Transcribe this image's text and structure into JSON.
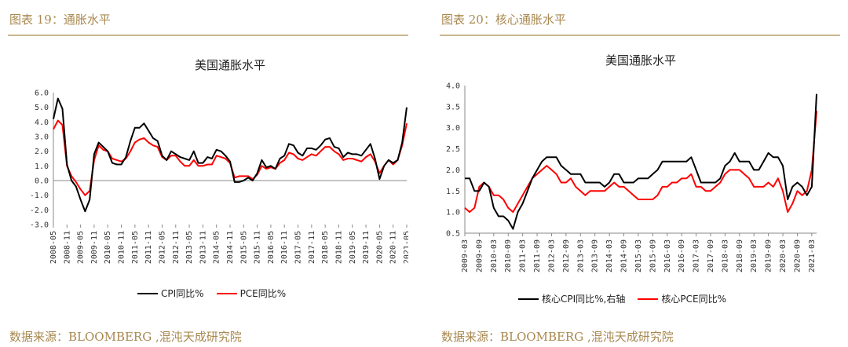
{
  "figures": [
    {
      "caption": "图表 19：通胀水平",
      "source": "数据来源：BLOOMBERG ,混沌天成研究院",
      "legend": [
        "CPI同比%",
        "PCE同比%"
      ]
    },
    {
      "caption": "图表 20：核心通胀水平",
      "source": "数据来源：BLOOMBERG ,混沌天成研究院",
      "legend": [
        "核心CPI同比%,右轴",
        "核心PCE同比%"
      ]
    }
  ],
  "chart_data": [
    {
      "type": "line",
      "title": "美国通胀水平",
      "xlabel": "",
      "ylabel": "",
      "ylim": [
        -3.0,
        6.0
      ],
      "yticks": [
        "6.0",
        "5.0",
        "4.0",
        "3.0",
        "2.0",
        "1.0",
        "0.0",
        "-1.0",
        "-2.0",
        "-3.0"
      ],
      "x_start": "2008-05",
      "x_end": "2021-05",
      "xticks": [
        "2008-05",
        "2008-11",
        "2009-05",
        "2009-11",
        "2010-05",
        "2010-11",
        "2011-05",
        "2011-11",
        "2012-05",
        "2012-11",
        "2013-05",
        "2013-11",
        "2014-05",
        "2014-11",
        "2015-05",
        "2015-11",
        "2016-05",
        "2016-11",
        "2017-05",
        "2017-11",
        "2018-05",
        "2018-11",
        "2019-05",
        "2019-11",
        "2020-05",
        "2020-11",
        "2021-05"
      ],
      "legend_position": "bottom",
      "series": [
        {
          "name": "CPI同比%",
          "color": "#000000",
          "x": [
            "2008-05",
            "2008-07",
            "2008-09",
            "2008-11",
            "2009-01",
            "2009-03",
            "2009-05",
            "2009-07",
            "2009-09",
            "2009-11",
            "2010-01",
            "2010-03",
            "2010-05",
            "2010-07",
            "2010-09",
            "2010-11",
            "2011-01",
            "2011-03",
            "2011-05",
            "2011-07",
            "2011-09",
            "2011-11",
            "2012-01",
            "2012-03",
            "2012-05",
            "2012-07",
            "2012-09",
            "2012-11",
            "2013-01",
            "2013-03",
            "2013-05",
            "2013-07",
            "2013-09",
            "2013-11",
            "2014-01",
            "2014-03",
            "2014-05",
            "2014-07",
            "2014-09",
            "2014-11",
            "2015-01",
            "2015-03",
            "2015-05",
            "2015-07",
            "2015-09",
            "2015-11",
            "2016-01",
            "2016-03",
            "2016-05",
            "2016-07",
            "2016-09",
            "2016-11",
            "2017-01",
            "2017-03",
            "2017-05",
            "2017-07",
            "2017-09",
            "2017-11",
            "2018-01",
            "2018-03",
            "2018-05",
            "2018-07",
            "2018-09",
            "2018-11",
            "2019-01",
            "2019-03",
            "2019-05",
            "2019-07",
            "2019-09",
            "2019-11",
            "2020-01",
            "2020-03",
            "2020-05",
            "2020-07",
            "2020-09",
            "2020-11",
            "2021-01",
            "2021-03",
            "2021-05"
          ],
          "y": [
            4.2,
            5.6,
            4.9,
            1.1,
            0.0,
            -0.4,
            -1.3,
            -2.1,
            -1.3,
            1.8,
            2.6,
            2.3,
            2.0,
            1.2,
            1.1,
            1.1,
            1.6,
            2.7,
            3.6,
            3.6,
            3.9,
            3.4,
            2.9,
            2.7,
            1.7,
            1.4,
            2.0,
            1.8,
            1.6,
            1.5,
            1.4,
            2.0,
            1.2,
            1.2,
            1.6,
            1.5,
            2.1,
            2.0,
            1.7,
            1.3,
            -0.1,
            -0.1,
            0.0,
            0.2,
            0.0,
            0.5,
            1.4,
            0.9,
            1.0,
            0.8,
            1.5,
            1.7,
            2.5,
            2.4,
            1.9,
            1.7,
            2.2,
            2.2,
            2.1,
            2.4,
            2.8,
            2.9,
            2.3,
            2.2,
            1.6,
            1.9,
            1.8,
            1.8,
            1.7,
            2.1,
            2.5,
            1.5,
            0.1,
            1.0,
            1.4,
            1.2,
            1.4,
            2.6,
            5.0
          ]
        },
        {
          "name": "PCE同比%",
          "color": "#ff0000",
          "x": [
            "2008-05",
            "2008-07",
            "2008-09",
            "2008-11",
            "2009-01",
            "2009-03",
            "2009-05",
            "2009-07",
            "2009-09",
            "2009-11",
            "2010-01",
            "2010-03",
            "2010-05",
            "2010-07",
            "2010-09",
            "2010-11",
            "2011-01",
            "2011-03",
            "2011-05",
            "2011-07",
            "2011-09",
            "2011-11",
            "2012-01",
            "2012-03",
            "2012-05",
            "2012-07",
            "2012-09",
            "2012-11",
            "2013-01",
            "2013-03",
            "2013-05",
            "2013-07",
            "2013-09",
            "2013-11",
            "2014-01",
            "2014-03",
            "2014-05",
            "2014-07",
            "2014-09",
            "2014-11",
            "2015-01",
            "2015-03",
            "2015-05",
            "2015-07",
            "2015-09",
            "2015-11",
            "2016-01",
            "2016-03",
            "2016-05",
            "2016-07",
            "2016-09",
            "2016-11",
            "2017-01",
            "2017-03",
            "2017-05",
            "2017-07",
            "2017-09",
            "2017-11",
            "2018-01",
            "2018-03",
            "2018-05",
            "2018-07",
            "2018-09",
            "2018-11",
            "2019-01",
            "2019-03",
            "2019-05",
            "2019-07",
            "2019-09",
            "2019-11",
            "2020-01",
            "2020-03",
            "2020-05",
            "2020-07",
            "2020-09",
            "2020-11",
            "2021-01",
            "2021-03",
            "2021-05"
          ],
          "y": [
            3.5,
            4.1,
            3.8,
            1.0,
            0.3,
            -0.1,
            -0.6,
            -1.0,
            -0.7,
            1.4,
            2.4,
            2.1,
            2.0,
            1.5,
            1.4,
            1.3,
            1.5,
            2.0,
            2.6,
            2.8,
            2.9,
            2.6,
            2.4,
            2.3,
            1.6,
            1.4,
            1.7,
            1.7,
            1.3,
            1.0,
            1.0,
            1.4,
            1.0,
            1.0,
            1.1,
            1.1,
            1.7,
            1.6,
            1.5,
            1.2,
            0.2,
            0.3,
            0.3,
            0.3,
            0.1,
            0.4,
            1.0,
            0.8,
            0.9,
            0.8,
            1.2,
            1.4,
            1.9,
            1.8,
            1.5,
            1.4,
            1.6,
            1.8,
            1.7,
            2.0,
            2.3,
            2.3,
            2.0,
            1.8,
            1.4,
            1.5,
            1.5,
            1.4,
            1.3,
            1.6,
            1.8,
            1.3,
            0.5,
            1.0,
            1.4,
            1.1,
            1.4,
            2.4,
            3.9
          ]
        }
      ]
    },
    {
      "type": "line",
      "title": "美国通胀水平",
      "xlabel": "",
      "ylabel": "",
      "ylim": [
        0.5,
        4.0
      ],
      "yticks": [
        "4.0",
        "3.5",
        "3.0",
        "2.5",
        "2.0",
        "1.5",
        "1.0",
        "0.5"
      ],
      "x_start": "2009-03",
      "x_end": "2021-05",
      "xticks": [
        "2009-03",
        "2009-09",
        "2010-03",
        "2010-09",
        "2011-03",
        "2011-09",
        "2012-03",
        "2012-09",
        "2013-03",
        "2013-09",
        "2014-03",
        "2014-09",
        "2015-03",
        "2015-09",
        "2016-03",
        "2016-09",
        "2017-03",
        "2017-09",
        "2018-03",
        "2018-09",
        "2019-03",
        "2019-09",
        "2020-03",
        "2020-09",
        "2021-03"
      ],
      "legend_position": "bottom",
      "series": [
        {
          "name": "核心CPI同比%,右轴",
          "color": "#000000",
          "x": [
            "2009-03",
            "2009-05",
            "2009-07",
            "2009-09",
            "2009-11",
            "2010-01",
            "2010-03",
            "2010-05",
            "2010-07",
            "2010-09",
            "2010-11",
            "2011-01",
            "2011-03",
            "2011-05",
            "2011-07",
            "2011-09",
            "2011-11",
            "2012-01",
            "2012-03",
            "2012-05",
            "2012-07",
            "2012-09",
            "2012-11",
            "2013-01",
            "2013-03",
            "2013-05",
            "2013-07",
            "2013-09",
            "2013-11",
            "2014-01",
            "2014-03",
            "2014-05",
            "2014-07",
            "2014-09",
            "2014-11",
            "2015-01",
            "2015-03",
            "2015-05",
            "2015-07",
            "2015-09",
            "2015-11",
            "2016-01",
            "2016-03",
            "2016-05",
            "2016-07",
            "2016-09",
            "2016-11",
            "2017-01",
            "2017-03",
            "2017-05",
            "2017-07",
            "2017-09",
            "2017-11",
            "2018-01",
            "2018-03",
            "2018-05",
            "2018-07",
            "2018-09",
            "2018-11",
            "2019-01",
            "2019-03",
            "2019-05",
            "2019-07",
            "2019-09",
            "2019-11",
            "2020-01",
            "2020-03",
            "2020-05",
            "2020-07",
            "2020-09",
            "2020-11",
            "2021-01",
            "2021-03",
            "2021-05"
          ],
          "y": [
            1.8,
            1.8,
            1.5,
            1.5,
            1.7,
            1.6,
            1.1,
            0.9,
            0.9,
            0.8,
            0.6,
            1.0,
            1.2,
            1.5,
            1.8,
            2.0,
            2.2,
            2.3,
            2.3,
            2.3,
            2.1,
            2.0,
            1.9,
            1.9,
            1.9,
            1.7,
            1.7,
            1.7,
            1.7,
            1.6,
            1.7,
            1.9,
            1.9,
            1.7,
            1.7,
            1.7,
            1.8,
            1.8,
            1.8,
            1.9,
            2.0,
            2.2,
            2.2,
            2.2,
            2.2,
            2.2,
            2.2,
            2.3,
            2.0,
            1.7,
            1.7,
            1.7,
            1.7,
            1.8,
            2.1,
            2.2,
            2.4,
            2.2,
            2.2,
            2.2,
            2.0,
            2.0,
            2.2,
            2.4,
            2.3,
            2.3,
            2.1,
            1.3,
            1.6,
            1.7,
            1.6,
            1.4,
            1.6,
            3.8
          ]
        },
        {
          "name": "核心PCE同比%",
          "color": "#ff0000",
          "x": [
            "2009-03",
            "2009-05",
            "2009-07",
            "2009-09",
            "2009-11",
            "2010-01",
            "2010-03",
            "2010-05",
            "2010-07",
            "2010-09",
            "2010-11",
            "2011-01",
            "2011-03",
            "2011-05",
            "2011-07",
            "2011-09",
            "2011-11",
            "2012-01",
            "2012-03",
            "2012-05",
            "2012-07",
            "2012-09",
            "2012-11",
            "2013-01",
            "2013-03",
            "2013-05",
            "2013-07",
            "2013-09",
            "2013-11",
            "2014-01",
            "2014-03",
            "2014-05",
            "2014-07",
            "2014-09",
            "2014-11",
            "2015-01",
            "2015-03",
            "2015-05",
            "2015-07",
            "2015-09",
            "2015-11",
            "2016-01",
            "2016-03",
            "2016-05",
            "2016-07",
            "2016-09",
            "2016-11",
            "2017-01",
            "2017-03",
            "2017-05",
            "2017-07",
            "2017-09",
            "2017-11",
            "2018-01",
            "2018-03",
            "2018-05",
            "2018-07",
            "2018-09",
            "2018-11",
            "2019-01",
            "2019-03",
            "2019-05",
            "2019-07",
            "2019-09",
            "2019-11",
            "2020-01",
            "2020-03",
            "2020-05",
            "2020-07",
            "2020-09",
            "2020-11",
            "2021-01",
            "2021-03",
            "2021-05"
          ],
          "y": [
            1.1,
            1.0,
            1.1,
            1.6,
            1.7,
            1.6,
            1.4,
            1.4,
            1.3,
            1.1,
            1.0,
            1.2,
            1.4,
            1.6,
            1.8,
            1.9,
            2.0,
            2.1,
            2.0,
            1.9,
            1.7,
            1.7,
            1.8,
            1.6,
            1.5,
            1.4,
            1.5,
            1.5,
            1.5,
            1.5,
            1.6,
            1.7,
            1.6,
            1.6,
            1.5,
            1.4,
            1.3,
            1.3,
            1.3,
            1.3,
            1.4,
            1.6,
            1.6,
            1.7,
            1.7,
            1.8,
            1.8,
            1.9,
            1.6,
            1.6,
            1.5,
            1.5,
            1.6,
            1.7,
            1.9,
            2.0,
            2.0,
            2.0,
            1.9,
            1.8,
            1.6,
            1.6,
            1.6,
            1.7,
            1.6,
            1.8,
            1.5,
            1.0,
            1.2,
            1.5,
            1.4,
            1.5,
            2.0,
            3.4
          ]
        }
      ]
    }
  ]
}
